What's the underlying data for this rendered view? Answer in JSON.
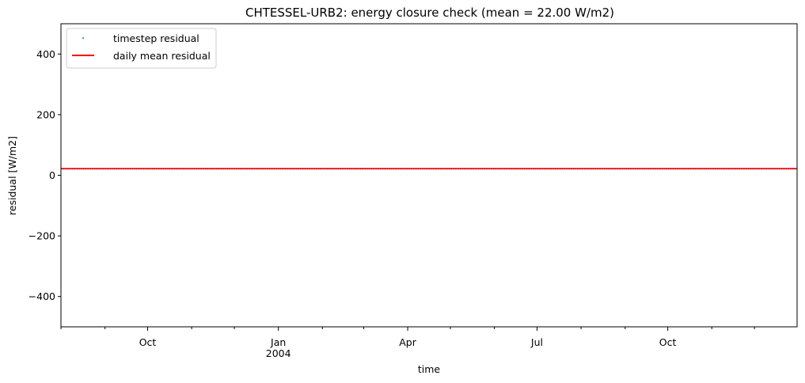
{
  "chart_data": {
    "type": "line",
    "title": "CHTESSEL-URB2: energy closure check (mean = 22.00 W/m2)",
    "xlabel": "time",
    "ylabel": "residual [W/m2]",
    "ylim": [
      -500,
      500
    ],
    "xlim": [
      "2003-08-01",
      "2004-12-31"
    ],
    "y_ticks": [
      -400,
      -200,
      0,
      200,
      400
    ],
    "y_tick_labels": [
      "−400",
      "−200",
      "0",
      "200",
      "400"
    ],
    "x_major_ticks": [
      {
        "date": "2003-10-01",
        "label": "Oct",
        "sublabel": ""
      },
      {
        "date": "2004-01-01",
        "label": "Jan",
        "sublabel": "2004"
      },
      {
        "date": "2004-04-01",
        "label": "Apr",
        "sublabel": ""
      },
      {
        "date": "2004-07-01",
        "label": "Jul",
        "sublabel": ""
      },
      {
        "date": "2004-10-01",
        "label": "Oct",
        "sublabel": ""
      }
    ],
    "x_minor_ticks": [
      "2003-08-01",
      "2003-09-01",
      "2003-11-01",
      "2003-12-01",
      "2004-02-01",
      "2004-03-01",
      "2004-05-01",
      "2004-06-01",
      "2004-08-01",
      "2004-09-01",
      "2004-11-01",
      "2004-12-01"
    ],
    "grid": false,
    "legend_position": "top-left",
    "series": [
      {
        "name": "timestep residual",
        "style": "points",
        "color": "#1f77b4",
        "x": [
          "2003-08-01",
          "2004-12-31"
        ],
        "values": [
          22.0,
          22.0
        ]
      },
      {
        "name": "daily mean residual",
        "style": "line",
        "color": "#ff0000",
        "x": [
          "2003-08-01",
          "2004-12-31"
        ],
        "values": [
          22.0,
          22.0
        ]
      }
    ]
  }
}
